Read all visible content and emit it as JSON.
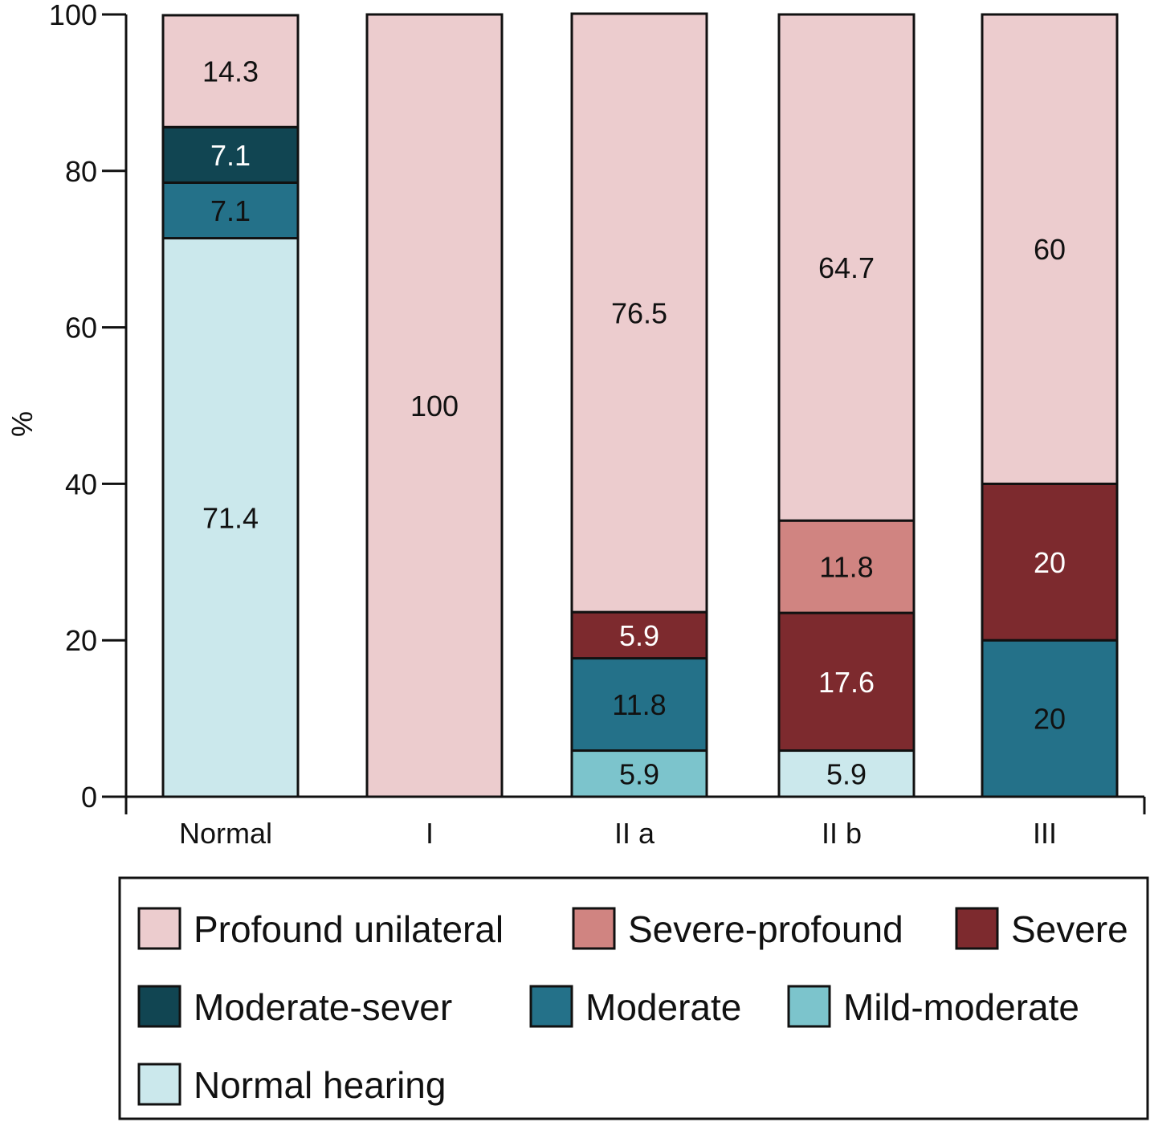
{
  "chart_data": {
    "type": "bar",
    "stacked": true,
    "title": "",
    "xlabel": "",
    "ylabel": "%",
    "ylim": [
      0,
      100
    ],
    "yticks": [
      0,
      20,
      40,
      60,
      80,
      100
    ],
    "grid": false,
    "legend_position": "bottom",
    "categories": [
      "Normal",
      "I",
      "II a",
      "II b",
      "III"
    ],
    "series": [
      {
        "name": "Normal hearing",
        "color": "#cbe8ec",
        "label_color": "#111111",
        "values": [
          71.4,
          0,
          0,
          5.9,
          0
        ]
      },
      {
        "name": "Mild-moderate",
        "color": "#7cc4cc",
        "label_color": "#111111",
        "values": [
          0,
          0,
          5.9,
          0,
          0
        ]
      },
      {
        "name": "Moderate",
        "color": "#247189",
        "label_color": "#ffffff",
        "values": [
          7.1,
          0,
          11.8,
          0,
          20
        ]
      },
      {
        "name": "Moderate-sever",
        "color": "#114552",
        "label_color": "#ffffff",
        "values": [
          7.1,
          0,
          0,
          0,
          0
        ]
      },
      {
        "name": "Severe",
        "color": "#7d2a2e",
        "label_color": "#ffffff",
        "values": [
          0,
          0,
          5.9,
          17.6,
          20
        ]
      },
      {
        "name": "Severe-profound",
        "color": "#d08481",
        "label_color": "#111111",
        "values": [
          0,
          0,
          0,
          11.8,
          0
        ]
      },
      {
        "name": "Profound unilateral",
        "color": "#ecccce",
        "label_color": "#111111",
        "values": [
          14.3,
          100,
          76.5,
          64.7,
          60
        ]
      }
    ],
    "label_overrides": {
      "Normal|Moderate": "#111111",
      "II a|Moderate": "#111111",
      "III|Moderate": "#111111"
    },
    "legend_order": [
      "Profound unilateral",
      "Severe-profound",
      "Severe",
      "Moderate-sever",
      "Moderate",
      "Mild-moderate",
      "Normal hearing"
    ]
  }
}
